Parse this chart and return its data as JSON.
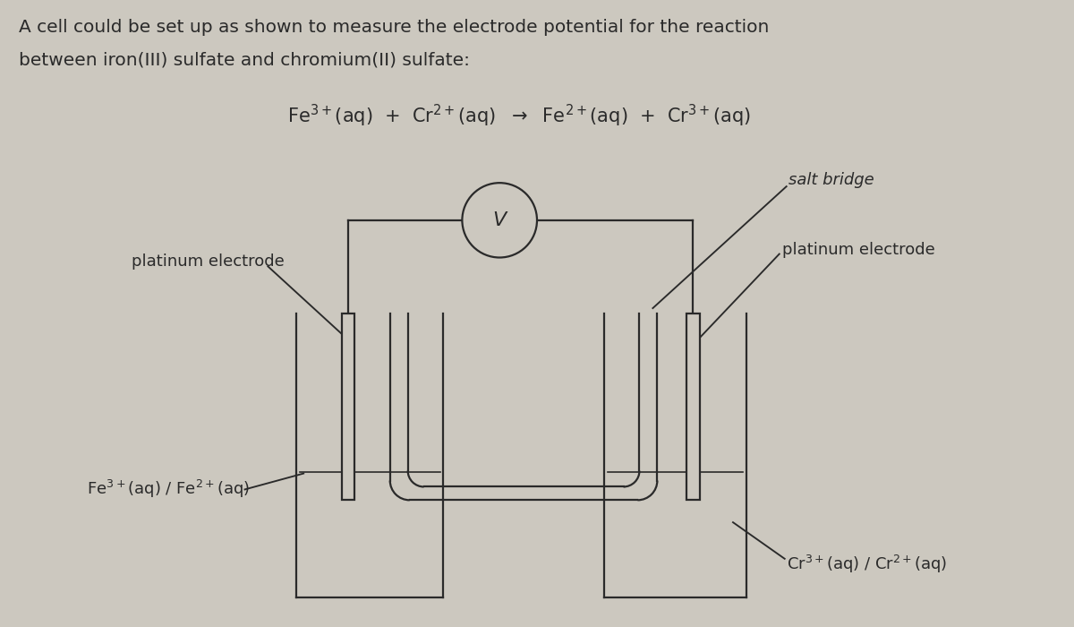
{
  "bg_color": "#ccc8bf",
  "line_color": "#2a2a2a",
  "text_color": "#2a2a2a",
  "title_line1": "A cell could be set up as shown to measure the electrode potential for the reaction",
  "title_line2": "between iron(III) sulfate and chromium(II) sulfate:",
  "label_pt_left": "platinum electrode",
  "label_pt_right": "platinum electrode",
  "label_salt": "salt bridge",
  "label_fe": "Fe$^{3+}$(aq) / Fe$^{2+}$(aq)",
  "label_cr": "Cr$^{3+}$(aq) / Cr$^{2+}$(aq)",
  "voltmeter_label": "V",
  "title_fontsize": 14.5,
  "eq_fontsize": 15,
  "label_fontsize": 13
}
